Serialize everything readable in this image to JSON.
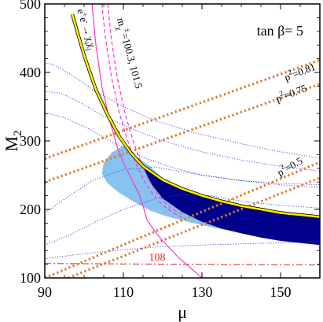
{
  "chart_data": {
    "type": "line",
    "title": "tan β= 5",
    "xlabel": "μ",
    "ylabel": "M",
    "ylabel_sub": "2",
    "xlim": [
      90,
      160
    ],
    "ylim": [
      100,
      500
    ],
    "xticks": [
      "90",
      "110",
      "130",
      "150"
    ],
    "xtick_values": [
      90,
      110,
      130,
      150
    ],
    "yticks": [
      "100",
      "200",
      "300",
      "400",
      "500"
    ],
    "ytick_values": [
      100,
      200,
      300,
      400,
      500
    ],
    "colors": {
      "yellow": "#ffee00",
      "magenta": "#ff33cc",
      "dark_blue": "#00008b",
      "light_blue": "#87c3f0",
      "orange": "#e0782a",
      "dotted_blue": "#3a3ae0",
      "red": "#e02020"
    },
    "annotations": {
      "chargino_mass": "m_χ± = 100.3, 101.5",
      "chargino_mass_parts": {
        "m": "m",
        "chi": "χ",
        "pm": "±",
        "values": "=100.3, 101.5"
      },
      "ee_process": "e+e- → χ_i χ_j",
      "ee_parts": {
        "e": "e",
        "plus": "+",
        "minus": "-",
        "arrow": "→",
        "chi": "χ",
        "i": "i",
        "j": "j"
      },
      "higgs_limit": "108"
    },
    "p2_labels": [
      {
        "base": "p",
        "exp": "2",
        "value": "=0.81"
      },
      {
        "base": "p",
        "exp": "2",
        "value": "=0.75"
      },
      {
        "base": "p",
        "exp": "2",
        "value": "=0.5"
      }
    ],
    "series": [
      {
        "kind": "yellow_boundary",
        "x": [
          97,
          100,
          103,
          106,
          109,
          112,
          115,
          120,
          125,
          130,
          135,
          140,
          145,
          150,
          155,
          160
        ],
        "y": [
          485,
          425,
          375,
          338,
          306,
          282,
          263,
          243,
          230,
          220,
          212,
          205,
          200,
          195,
          192,
          189
        ]
      },
      {
        "kind": "magenta_dashed_1",
        "x": [
          104.5,
          105.5,
          107,
          109,
          111,
          113,
          115,
          117,
          119,
          121,
          123,
          125
        ],
        "y": [
          500,
          448,
          392,
          340,
          302,
          270,
          245,
          226,
          212,
          202,
          194,
          188
        ]
      },
      {
        "kind": "magenta_dashed_2",
        "x": [
          106,
          107,
          108.5,
          110.5,
          112.5,
          114.5,
          116.5,
          118.5,
          120.5,
          122.5,
          125
        ],
        "y": [
          500,
          446,
          390,
          338,
          300,
          268,
          243,
          224,
          210,
          200,
          193
        ]
      },
      {
        "kind": "magenta_solid",
        "x": [
          102,
          103,
          104.5,
          106.5,
          108.5,
          110.5,
          112.5,
          114,
          115,
          116,
          118,
          120,
          122,
          124,
          126,
          128,
          130
        ],
        "y": [
          500,
          440,
          380,
          330,
          290,
          262,
          240,
          222,
          205,
          185,
          168,
          154,
          142,
          130,
          120,
          110,
          100
        ]
      },
      {
        "kind": "dark_blue_region",
        "upper": {
          "x": [
            115,
            120,
            125,
            130,
            135,
            140,
            145,
            150,
            155,
            160
          ],
          "y": [
            262,
            242,
            229,
            219,
            211,
            204,
            199,
            194,
            191,
            188
          ]
        },
        "lower": {
          "x": [
            160,
            155,
            150,
            145,
            140,
            135,
            130,
            125,
            120,
            117
          ],
          "y": [
            148,
            151,
            154,
            159,
            165,
            172,
            182,
            196,
            216,
            238
          ]
        }
      },
      {
        "kind": "light_blue_region",
        "x": [
          110,
          111.5,
          113.5,
          115.5,
          117,
          120,
          125,
          130,
          135,
          140,
          145,
          150,
          155,
          160,
          160,
          155,
          150,
          145,
          140,
          135,
          130,
          125,
          121,
          117,
          113,
          109,
          106,
          104.5,
          105,
          107
        ],
        "y": [
          293,
          284,
          276,
          268,
          262,
          245,
          232,
          222,
          214,
          207,
          202,
          197,
          194,
          191,
          155,
          156,
          158,
          162,
          166,
          171,
          177,
          184,
          190,
          198,
          210,
          224,
          238,
          252,
          268,
          283
        ]
      },
      {
        "kind": "orange_dotted_lines",
        "lines": [
          {
            "label": "p²=0.81",
            "x": [
              90,
              160
            ],
            "y": [
              274,
              418
            ]
          },
          {
            "label": "p²=0.75",
            "x": [
              90,
              160
            ],
            "y": [
              240,
              383
            ]
          },
          {
            "label": "p²=0.5",
            "x": [
              90,
              160
            ],
            "y": [
              100,
              269
            ]
          },
          {
            "label": "",
            "x": [
              96,
              160
            ],
            "y": [
              100,
              246
            ]
          }
        ]
      },
      {
        "kind": "red_dash_dot",
        "x": [
          90,
          160
        ],
        "y": [
          121,
          119
        ]
      },
      {
        "kind": "blue_dotted_contours",
        "contours": [
          {
            "x": [
              160,
              150,
              140,
              128,
              118,
              110,
              103,
              97,
              92,
              90
            ],
            "y": [
              275,
              284,
              296,
              312,
              330,
              350,
              372,
              396,
              412,
              414
            ]
          },
          {
            "x": [
              160,
              150,
              140,
              130,
              120,
              112,
              105,
              99,
              94,
              90
            ],
            "y": [
              256,
              263,
              272,
              284,
              300,
              318,
              336,
              356,
              370,
              372
            ]
          },
          {
            "x": [
              160,
              150,
              140,
              130,
              122,
              115,
              108,
              101,
              95,
              91,
              90
            ],
            "y": [
              232,
              236,
              242,
              250,
              262,
              276,
              296,
              318,
              334,
              340,
              340
            ]
          },
          {
            "x": [
              90,
              95,
              102,
              110,
              118,
              128,
              140,
              150,
              160
            ],
            "y": [
              195,
              215,
              242,
              258,
              262,
              252,
              242,
              238,
              236
            ]
          },
          {
            "x": [
              90,
              96,
              103,
              110,
              118,
              125,
              132,
              140,
              150,
              160
            ],
            "y": [
              148,
              162,
              182,
              200,
              215,
              222,
              220,
              212,
              206,
              202
            ]
          },
          {
            "x": [
              90,
              98,
              108,
              118,
              130,
              142,
              155,
              160
            ],
            "y": [
              128,
              134,
              140,
              145,
              148,
              150,
              152,
              153
            ]
          }
        ]
      }
    ],
    "grid": false,
    "legend": "none"
  }
}
